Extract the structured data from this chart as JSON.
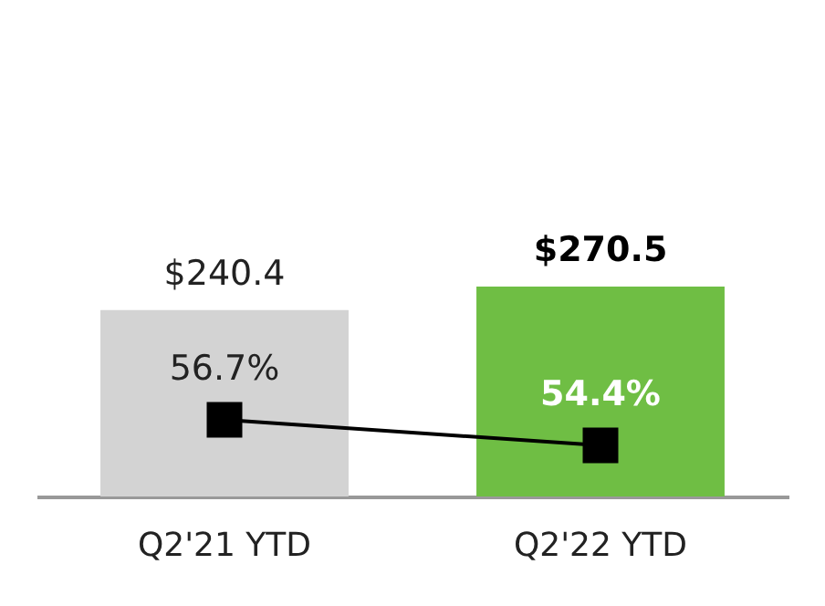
{
  "chart_data": {
    "type": "bar",
    "categories": [
      "Q2'21 YTD",
      "Q2'22 YTD"
    ],
    "series": [
      {
        "colors": [
          "#d3d3d3",
          "#6fbe44"
        ],
        "values": [
          240.4,
          270.5
        ],
        "value_labels": [
          "$240.4",
          "$270.5"
        ]
      },
      {
        "type": "line",
        "axis": "y2",
        "color": "#000000",
        "marker": "square",
        "values": [
          56.7,
          54.4
        ],
        "value_labels": [
          "56.7%",
          "54.4%"
        ]
      }
    ],
    "ylim": [
      0,
      640
    ],
    "y2lim": [
      49.8,
      94.5
    ],
    "tick_labels": "x",
    "grid": false
  }
}
